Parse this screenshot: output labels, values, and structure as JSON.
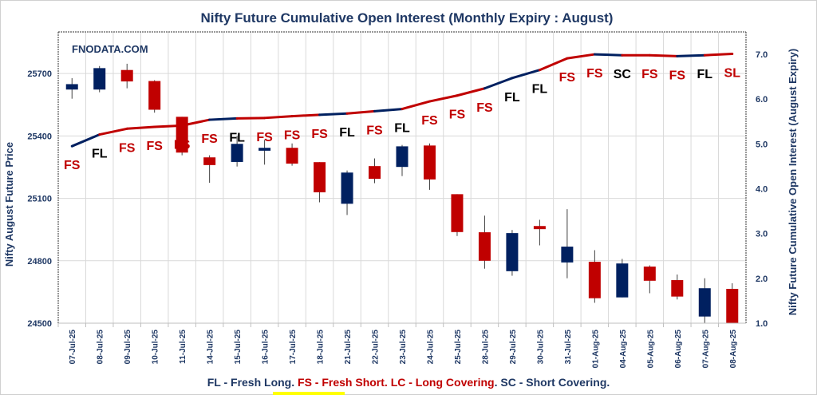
{
  "chart_data": {
    "type": "candlestick+line",
    "title": "Nifty Future Cumulative Open Interest (Monthly Expiry : August)",
    "watermark": "FNODATA.COM",
    "ylabel_left": "Nifty August Future Price",
    "ylabel_right": "Nifty Future Cumulative Open Interest (August Expiry)",
    "ylim_left": [
      24500,
      25900
    ],
    "yticks_left": [
      "24500",
      "24800",
      "25100",
      "25400",
      "25700"
    ],
    "ylim_right": [
      1.0,
      7.5
    ],
    "yticks_right": [
      "1.0",
      "2.0",
      "3.0",
      "4.0",
      "5.0",
      "6.0",
      "7.0"
    ],
    "grid": true,
    "categories": [
      "07-Jul-25",
      "08-Jul-25",
      "09-Jul-25",
      "10-Jul-25",
      "11-Jul-25",
      "14-Jul-25",
      "15-Jul-25",
      "16-Jul-25",
      "17-Jul-25",
      "18-Jul-25",
      "21-Jul-25",
      "22-Jul-25",
      "23-Jul-25",
      "24-Jul-25",
      "25-Jul-25",
      "28-Jul-25",
      "29-Jul-25",
      "30-Jul-25",
      "31-Jul-25",
      "01-Aug-25",
      "04-Aug-25",
      "05-Aug-25",
      "06-Aug-25",
      "07-Aug-25",
      "08-Aug-25"
    ],
    "ohlc": [
      [
        25623,
        25678,
        25579,
        25649
      ],
      [
        25623,
        25736,
        25610,
        25726
      ],
      [
        25717,
        25747,
        25629,
        25662
      ],
      [
        25664,
        25668,
        25512,
        25526
      ],
      [
        25492,
        25492,
        25307,
        25320
      ],
      [
        25297,
        25307,
        25175,
        25260
      ],
      [
        25275,
        25400,
        25253,
        25362
      ],
      [
        25329,
        25381,
        25262,
        25343
      ],
      [
        25343,
        25364,
        25257,
        25267
      ],
      [
        25274,
        25274,
        25081,
        25129
      ],
      [
        25074,
        25234,
        25020,
        25224
      ],
      [
        25255,
        25292,
        25173,
        25194
      ],
      [
        25251,
        25357,
        25207,
        25350
      ],
      [
        25354,
        25364,
        25141,
        25191
      ],
      [
        25120,
        25120,
        24919,
        24938
      ],
      [
        24937,
        25017,
        24762,
        24800
      ],
      [
        24750,
        24948,
        24728,
        24933
      ],
      [
        24967,
        24997,
        24874,
        24952
      ],
      [
        24792,
        25048,
        24716,
        24868
      ],
      [
        24795,
        24851,
        24598,
        24620
      ],
      [
        24624,
        24809,
        24624,
        24787
      ],
      [
        24772,
        24778,
        24644,
        24704
      ],
      [
        24707,
        24734,
        24614,
        24628
      ],
      [
        24532,
        24716,
        24494,
        24668
      ],
      [
        24665,
        24692,
        24490,
        24494
      ]
    ],
    "open_interest": [
      4.95,
      5.21,
      5.34,
      5.38,
      5.41,
      5.54,
      5.57,
      5.58,
      5.62,
      5.65,
      5.68,
      5.73,
      5.78,
      5.95,
      6.08,
      6.24,
      6.47,
      6.65,
      6.91,
      7.0,
      6.98,
      6.98,
      6.96,
      6.98,
      7.01
    ],
    "signals": [
      "FS",
      "FL",
      "FS",
      "FS",
      "FS",
      "FS",
      "FL",
      "FS",
      "FS",
      "FS",
      "FL",
      "FS",
      "FL",
      "FS",
      "FS",
      "FS",
      "FL",
      "FL",
      "FS",
      "FS",
      "SC",
      "FS",
      "FS",
      "FL",
      "SL"
    ],
    "colors": {
      "up": "#002060",
      "down": "#c00000",
      "navy": "#1f3864",
      "long_label": "#000000",
      "short_label": "#c00000"
    }
  },
  "legend": {
    "fl": "FL - Fresh Long.",
    "fs": "FS - Fresh Short.",
    "lc": "LC - Long Covering",
    "dot": ".",
    "sc": "SC - Short Covering."
  }
}
